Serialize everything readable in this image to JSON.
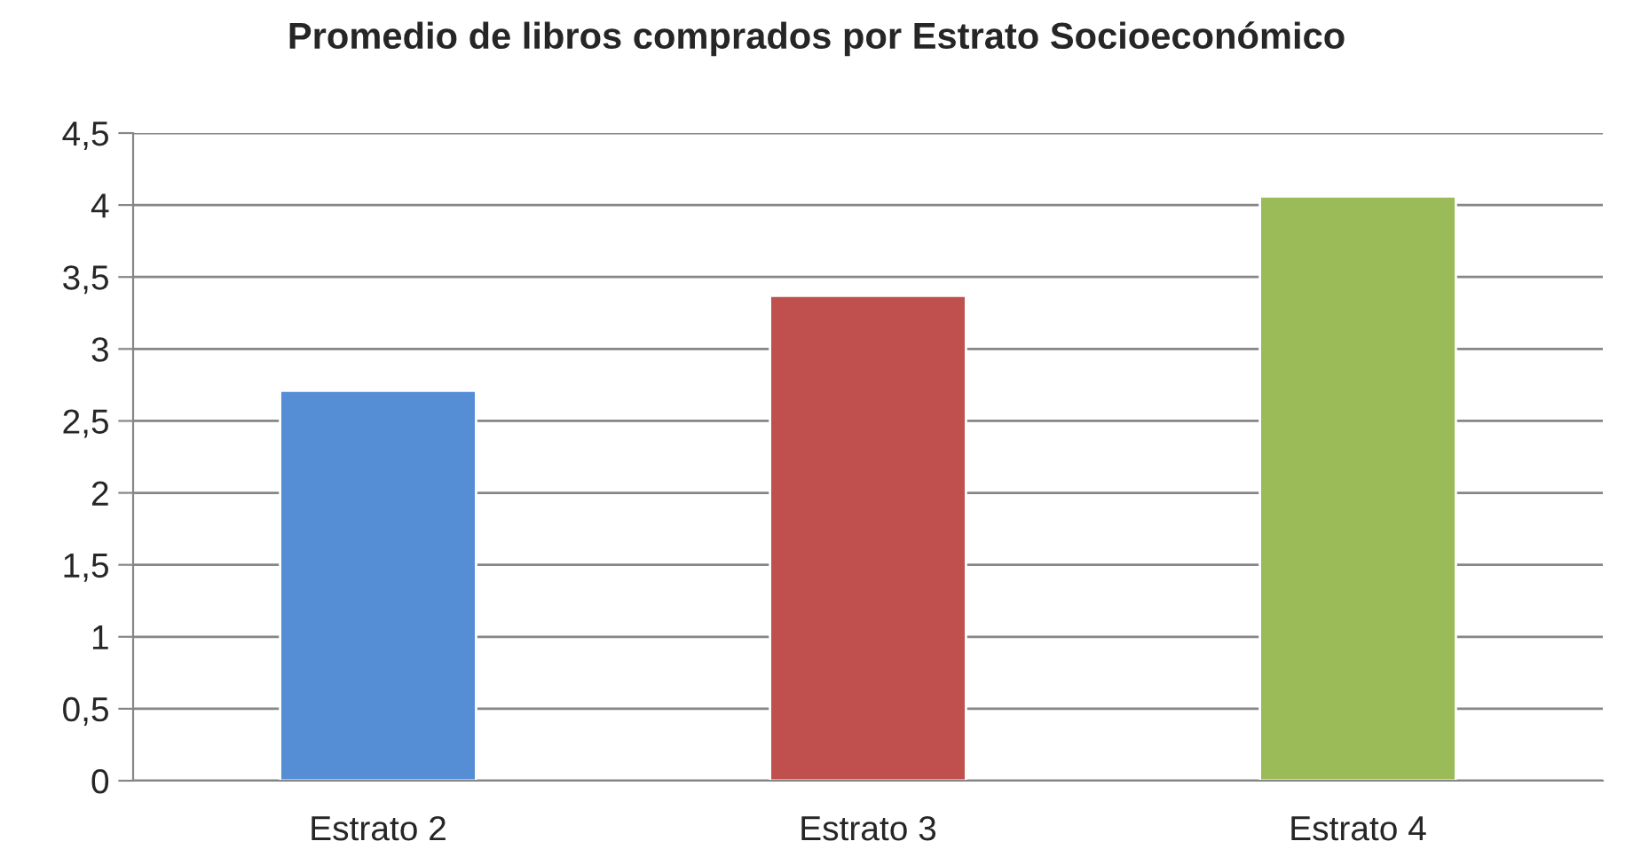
{
  "chart_data": {
    "type": "bar",
    "title": "Promedio de libros comprados por Estrato Socioeconómico",
    "categories": [
      "Estrato 2",
      "Estrato 3",
      "Estrato 4"
    ],
    "values": [
      2.71,
      3.37,
      4.06
    ],
    "colors": [
      "#558ed5",
      "#c0504d",
      "#9bbb59"
    ],
    "ylim": [
      0,
      4.5
    ],
    "yticks": [
      0,
      {
        "value": 0.5,
        "label": "0,5"
      },
      1,
      {
        "value": 1.5,
        "label": "1,5"
      },
      2,
      {
        "value": 2.5,
        "label": "2,5"
      },
      3,
      {
        "value": 3.5,
        "label": "3,5"
      },
      4,
      {
        "value": 4.5,
        "label": "4,5"
      }
    ],
    "grid": "y",
    "legend": false
  }
}
